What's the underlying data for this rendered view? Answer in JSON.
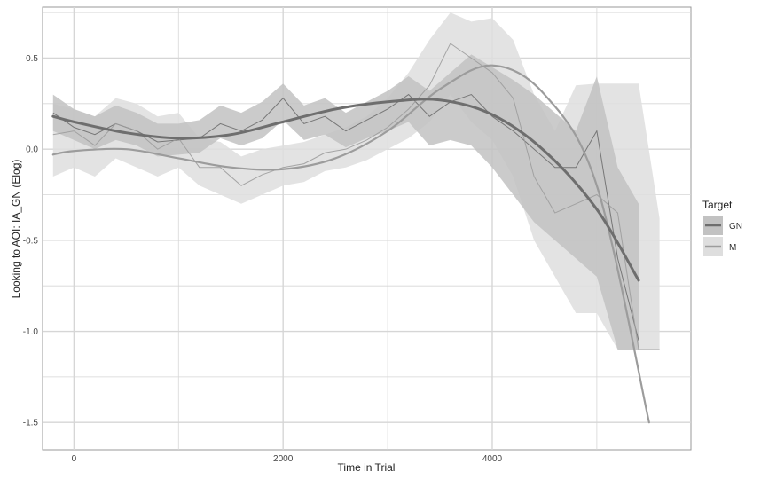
{
  "chart_data": {
    "type": "line",
    "title": "",
    "xlabel": "Time in Trial",
    "ylabel": "Looking to AOI:  IA_GN (Elog)",
    "xlim": [
      -300,
      5900
    ],
    "ylim": [
      -1.65,
      0.78
    ],
    "x_ticks": [
      0,
      2000,
      4000
    ],
    "x_tick_labels": [
      "0",
      "2000",
      "4000"
    ],
    "y_ticks": [
      0.5,
      0.0,
      -0.5,
      -1.0,
      -1.5
    ],
    "y_tick_labels": [
      "0.5",
      "0.0",
      "-0.5",
      "-1.0",
      "-1.5"
    ],
    "grid": true,
    "legend": {
      "title": "Target",
      "position": "right",
      "entries": [
        "GN",
        "M"
      ]
    },
    "colors": {
      "GN_band": "#c2c2c2",
      "M_band": "#dedede",
      "GN_line": "#6e6e6e",
      "M_line": "#9c9c9c",
      "grid": "#d6d6d6",
      "frame": "#999999"
    },
    "series": [
      {
        "name": "GN",
        "x": [
          -200,
          0,
          200,
          400,
          600,
          800,
          1000,
          1200,
          1400,
          1600,
          1800,
          2000,
          2200,
          2400,
          2600,
          2800,
          3000,
          3200,
          3400,
          3600,
          3800,
          4000,
          4200,
          4400,
          4600,
          4800,
          5000,
          5200,
          5400
        ],
        "observed": [
          0.2,
          0.12,
          0.08,
          0.14,
          0.1,
          0.04,
          0.05,
          0.06,
          0.14,
          0.1,
          0.16,
          0.28,
          0.14,
          0.18,
          0.1,
          0.16,
          0.22,
          0.3,
          0.18,
          0.26,
          0.3,
          0.18,
          0.1,
          0.0,
          -0.1,
          -0.1,
          0.1,
          -0.6,
          -1.05
        ],
        "lower": [
          0.1,
          0.05,
          0.0,
          0.05,
          0.02,
          -0.04,
          -0.03,
          -0.02,
          0.06,
          0.02,
          0.06,
          0.16,
          0.05,
          0.08,
          0.01,
          0.06,
          0.1,
          0.15,
          0.02,
          0.05,
          0.02,
          -0.1,
          -0.25,
          -0.4,
          -0.5,
          -0.6,
          -0.7,
          -1.1,
          -1.1
        ],
        "upper": [
          0.3,
          0.22,
          0.18,
          0.24,
          0.2,
          0.14,
          0.14,
          0.16,
          0.24,
          0.2,
          0.26,
          0.36,
          0.24,
          0.28,
          0.2,
          0.26,
          0.32,
          0.4,
          0.32,
          0.42,
          0.52,
          0.45,
          0.38,
          0.3,
          0.2,
          0.1,
          0.4,
          -0.1,
          -0.3
        ],
        "smooth_x": [
          -200,
          0,
          500,
          1000,
          1500,
          2000,
          2500,
          3000,
          3500,
          4000,
          4500,
          5000,
          5400
        ],
        "smooth_y": [
          0.18,
          0.15,
          0.09,
          0.06,
          0.08,
          0.15,
          0.22,
          0.26,
          0.27,
          0.19,
          -0.01,
          -0.33,
          -0.72
        ]
      },
      {
        "name": "M",
        "x": [
          -200,
          0,
          200,
          400,
          600,
          800,
          1000,
          1200,
          1400,
          1600,
          1800,
          2000,
          2200,
          2400,
          2600,
          2800,
          3000,
          3200,
          3400,
          3600,
          3800,
          4000,
          4200,
          4400,
          4600,
          4800,
          5000,
          5200,
          5400,
          5600
        ],
        "observed": [
          0.08,
          0.1,
          0.02,
          0.14,
          0.1,
          0.0,
          0.06,
          -0.1,
          -0.1,
          -0.2,
          -0.14,
          -0.1,
          -0.08,
          -0.02,
          0.0,
          0.05,
          0.12,
          0.22,
          0.35,
          0.58,
          0.5,
          0.42,
          0.28,
          -0.15,
          -0.35,
          -0.3,
          -0.25,
          -0.35,
          -1.1,
          -1.1
        ],
        "lower": [
          -0.15,
          -0.1,
          -0.15,
          -0.05,
          -0.1,
          -0.15,
          -0.1,
          -0.2,
          -0.25,
          -0.3,
          -0.25,
          -0.2,
          -0.18,
          -0.12,
          -0.1,
          -0.06,
          0.0,
          0.06,
          0.15,
          0.3,
          0.15,
          0.05,
          -0.15,
          -0.5,
          -0.7,
          -0.9,
          -0.9,
          -1.1,
          -1.1,
          -1.1
        ],
        "upper": [
          0.25,
          0.22,
          0.18,
          0.28,
          0.25,
          0.18,
          0.2,
          0.06,
          0.04,
          -0.04,
          0.0,
          0.02,
          0.04,
          0.08,
          0.12,
          0.18,
          0.28,
          0.42,
          0.6,
          0.75,
          0.7,
          0.72,
          0.6,
          0.3,
          0.1,
          0.35,
          0.36,
          0.36,
          0.36,
          -0.38
        ],
        "smooth_x": [
          -200,
          0,
          500,
          1000,
          1500,
          2000,
          2500,
          3000,
          3500,
          4000,
          4500,
          5000,
          5500
        ],
        "smooth_y": [
          -0.03,
          -0.01,
          0.0,
          -0.05,
          -0.1,
          -0.11,
          -0.05,
          0.1,
          0.33,
          0.46,
          0.3,
          -0.2,
          -1.5
        ]
      }
    ]
  }
}
